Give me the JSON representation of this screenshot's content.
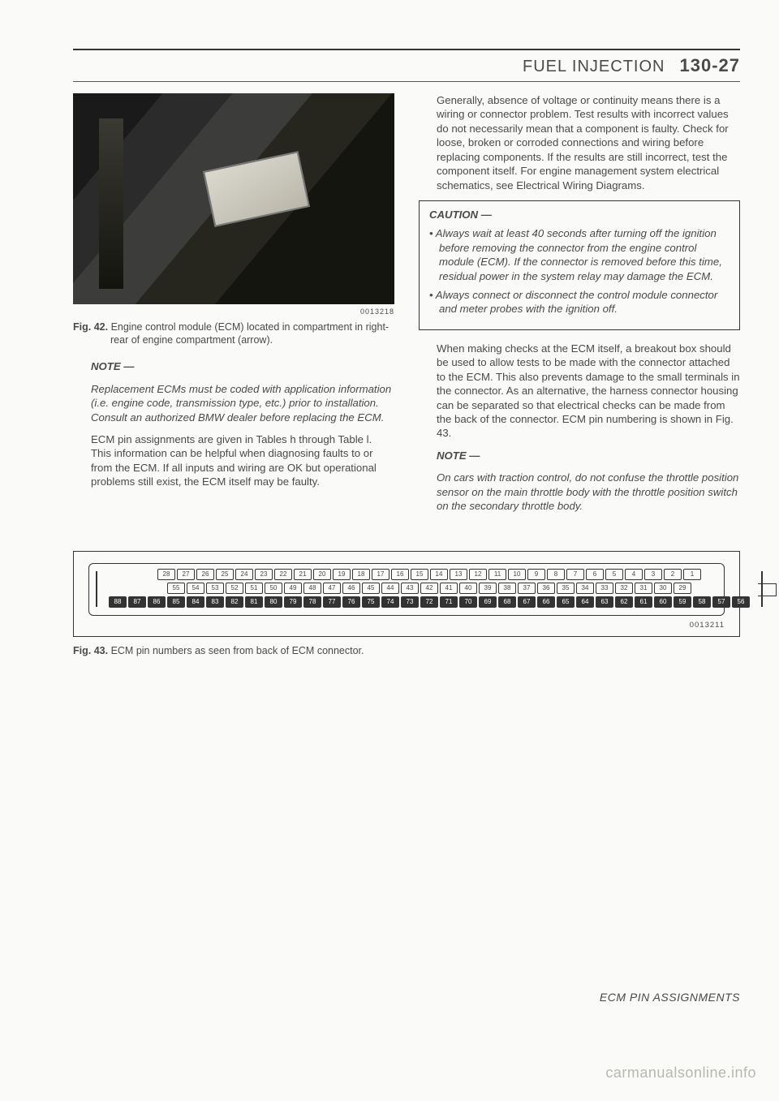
{
  "header": {
    "title": "FUEL INJECTION",
    "code": "130-27"
  },
  "left": {
    "fig42_id": "0013218",
    "fig42_label": "Fig. 42.",
    "fig42_text": "Engine control module (ECM) located in compartment in right-rear of engine compartment (arrow).",
    "note_title": "NOTE —",
    "note_body": "Replacement ECMs must be coded with application information (i.e. engine code, transmission type, etc.) prior to installation. Consult an authorized BMW dealer before replacing the ECM.",
    "para1": "ECM pin assignments are given in Tables h through Table l. This information can be helpful when diagnosing faults to or from the ECM. If all inputs and wiring are OK but operational problems still exist, the ECM itself may be faulty."
  },
  "right": {
    "para1": "Generally, absence of voltage or continuity means there is a wiring or connector problem. Test results with incorrect values do not necessarily mean that a component is faulty. Check for loose, broken or corroded connections and wiring before replacing components. If the results are still incorrect, test the component itself. For engine management system electrical schematics, see Electrical Wiring Diagrams.",
    "caution_title": "CAUTION —",
    "caution_items": [
      "Always wait at least 40 seconds after turning off the ignition before removing the connector from the engine control module (ECM). If the connector is removed before this time, residual power in the system relay may damage the ECM.",
      "Always connect or disconnect the control module connector and meter probes with the ignition off."
    ],
    "para2": "When making checks at the ECM itself, a breakout box should be used to allow tests to be made with the connector attached to the ECM. This also prevents damage to the small terminals in the connector. As an alternative, the harness connector housing can be separated so that electrical checks can be made from the back of the connector. ECM pin numbering is shown in Fig. 43.",
    "note_title": "NOTE —",
    "note_body": "On cars with traction control, do not confuse the throttle position sensor on the main throttle body with the throttle position switch on the secondary throttle body."
  },
  "connector": {
    "rows": [
      {
        "filled": false,
        "pins": [
          "28",
          "27",
          "26",
          "25",
          "24",
          "23",
          "22",
          "21",
          "20",
          "19",
          "18",
          "17",
          "16",
          "15",
          "14",
          "13",
          "12",
          "11",
          "10",
          "9",
          "8",
          "7",
          "6",
          "5",
          "4",
          "3",
          "2",
          "1"
        ]
      },
      {
        "filled": false,
        "pins": [
          "55",
          "54",
          "53",
          "52",
          "51",
          "50",
          "49",
          "48",
          "47",
          "46",
          "45",
          "44",
          "43",
          "42",
          "41",
          "40",
          "39",
          "38",
          "37",
          "36",
          "35",
          "34",
          "33",
          "32",
          "31",
          "30",
          "29"
        ]
      },
      {
        "filled": true,
        "pins": [
          "88",
          "87",
          "86",
          "85",
          "84",
          "83",
          "82",
          "81",
          "80",
          "79",
          "78",
          "77",
          "76",
          "75",
          "74",
          "73",
          "72",
          "71",
          "70",
          "69",
          "68",
          "67",
          "66",
          "65",
          "64",
          "63",
          "62",
          "61",
          "60",
          "59",
          "58",
          "57",
          "56"
        ]
      }
    ],
    "fig_id": "0013211"
  },
  "fig43_label": "Fig. 43.",
  "fig43_text": "ECM pin numbers as seen from back of ECM connector.",
  "footer": "ECM PIN ASSIGNMENTS",
  "watermark": "carmanualsonline.info"
}
